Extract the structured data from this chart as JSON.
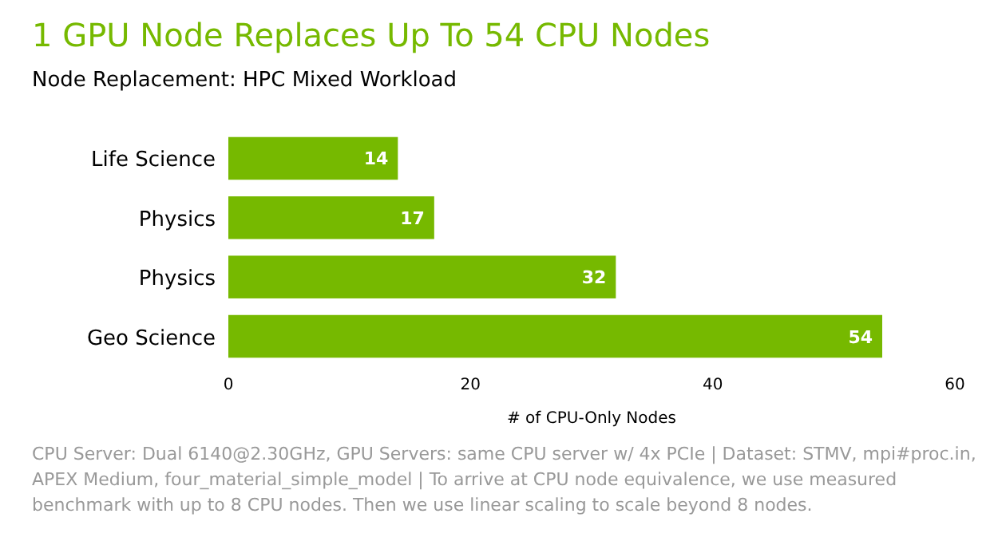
{
  "chart_data": {
    "type": "bar",
    "orientation": "horizontal",
    "title": "1 GPU Node Replaces Up To 54 CPU Nodes",
    "subtitle": "Node Replacement: HPC Mixed Workload",
    "xlabel": "# of CPU-Only Nodes",
    "categories": [
      "Life Science",
      "Physics",
      "Physics",
      "Geo Science"
    ],
    "values": [
      14,
      17,
      32,
      54
    ],
    "color": "#76b900",
    "data_labels": true,
    "xlim": [
      0,
      60
    ],
    "xticks": [
      0,
      20,
      40,
      60
    ],
    "grid": false,
    "annotations": [
      "CPU Server: Dual 6140@2.30GHz, GPU Servers: same CPU server w/ 4x PCIe | Dataset: STMV, mpi#proc.in, APEX Medium, four_material_simple_model | To arrive at CPU node equivalence, we use measured benchmark with up to 8 CPU nodes. Then we use linear scaling to scale beyond 8 nodes."
    ]
  }
}
